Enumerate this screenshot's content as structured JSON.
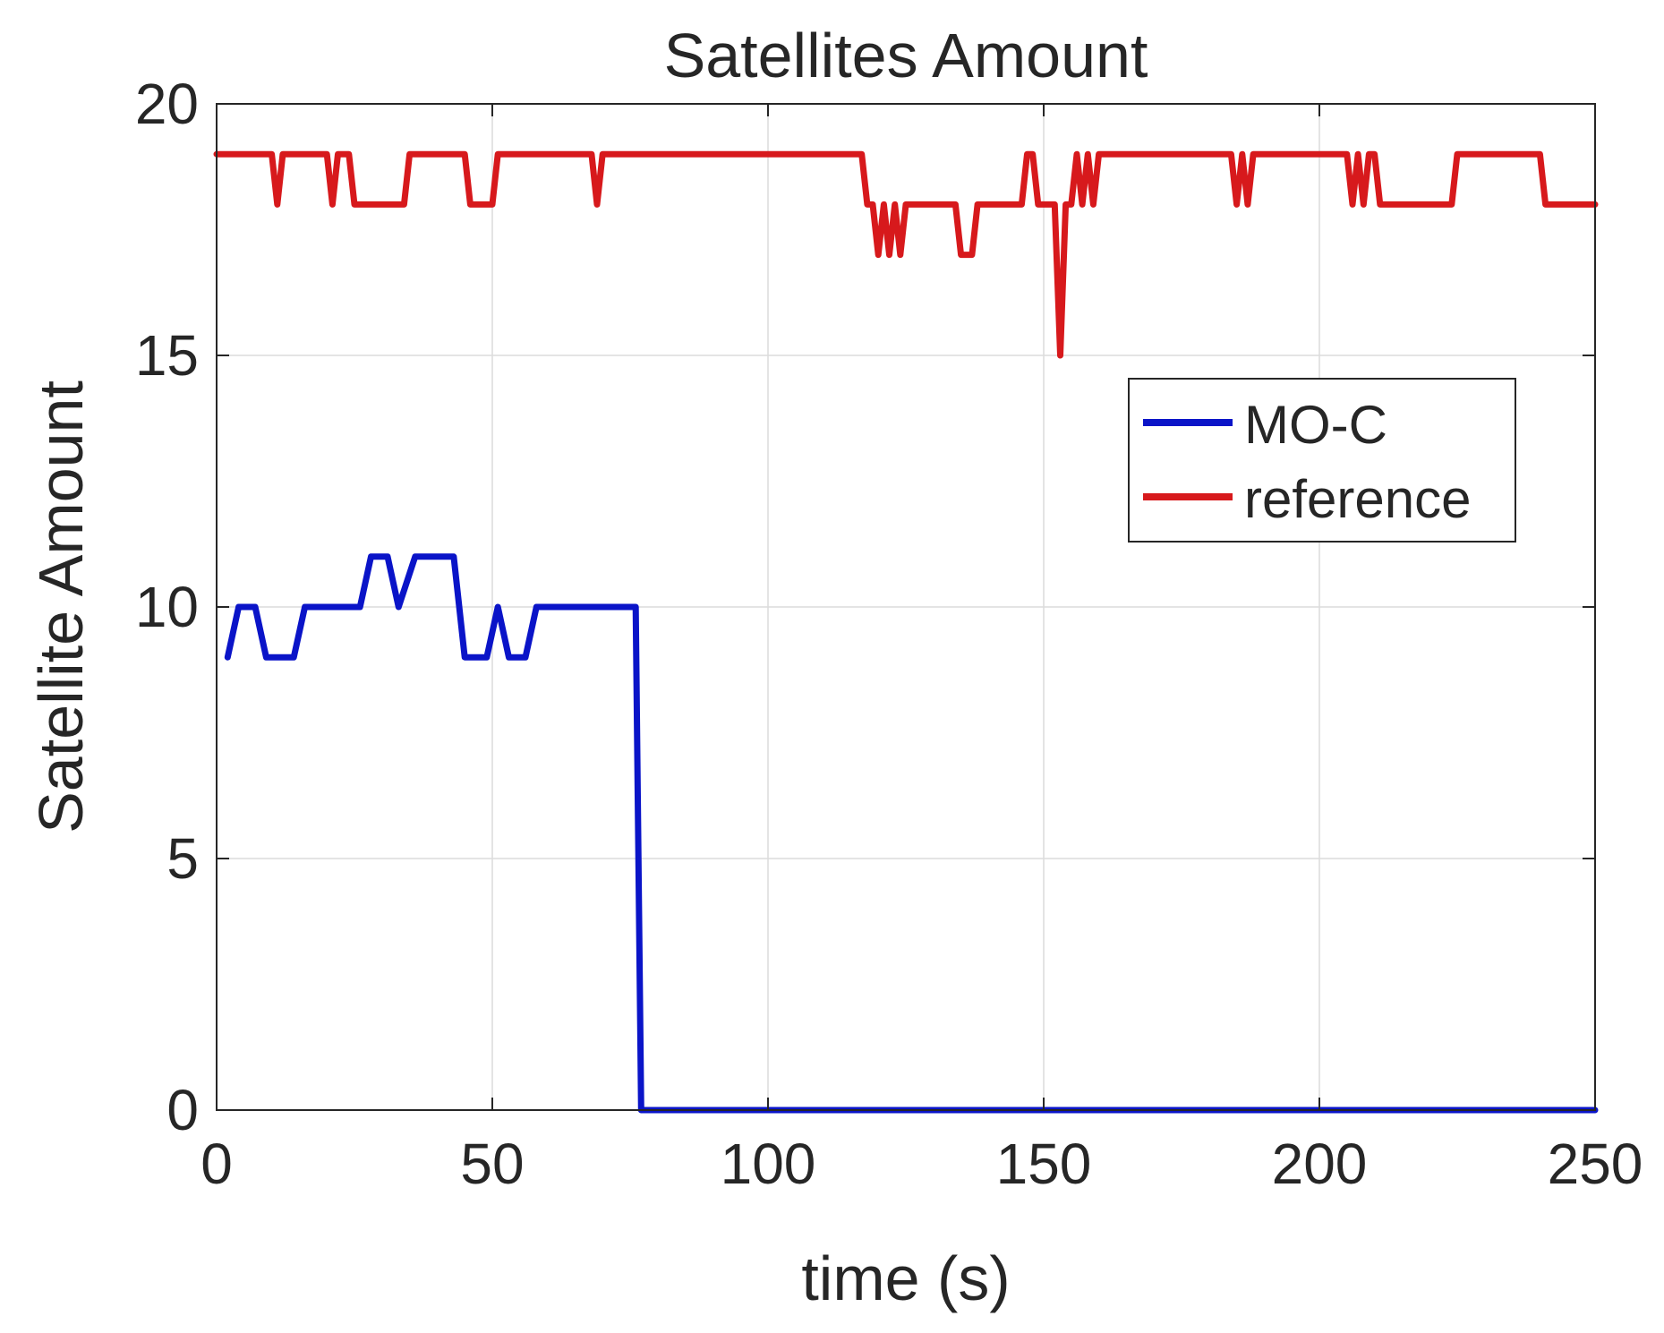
{
  "chart_data": {
    "type": "line",
    "title": "Satellites Amount",
    "xlabel": "time (s)",
    "ylabel": "Satellite Amount",
    "xlim": [
      0,
      250
    ],
    "ylim": [
      0,
      20
    ],
    "xticks": [
      0,
      50,
      100,
      150,
      200,
      250
    ],
    "yticks": [
      0,
      5,
      10,
      15,
      20
    ],
    "grid": true,
    "legend_position": "upper-right",
    "series": [
      {
        "name": "MO-C",
        "color": "#0a14c8",
        "x": [
          2,
          4,
          7,
          9,
          14,
          16,
          26,
          28,
          31,
          33,
          36,
          43,
          45,
          49,
          51,
          53,
          56,
          58,
          76,
          77,
          250
        ],
        "y": [
          9,
          10,
          10,
          9,
          9,
          10,
          10,
          11,
          11,
          10,
          11,
          11,
          9,
          9,
          10,
          9,
          9,
          10,
          10,
          0,
          0
        ]
      },
      {
        "name": "reference",
        "color": "#d7191c",
        "x": [
          0,
          10,
          11,
          12,
          20,
          21,
          22,
          23,
          24,
          25,
          34,
          35,
          45,
          46,
          50,
          51,
          68,
          69,
          70,
          117,
          118,
          119,
          120,
          121,
          122,
          123,
          124,
          125,
          126,
          134,
          135,
          137,
          138,
          146,
          147,
          148,
          149,
          152,
          153,
          154,
          155,
          156,
          157,
          158,
          159,
          160,
          161,
          184,
          185,
          186,
          187,
          188,
          205,
          206,
          207,
          208,
          209,
          210,
          211,
          224,
          225,
          240,
          241,
          250
        ],
        "y": [
          19,
          19,
          18,
          19,
          19,
          18,
          19,
          19,
          19,
          18,
          18,
          19,
          19,
          18,
          18,
          19,
          19,
          18,
          19,
          19,
          18,
          18,
          17,
          18,
          17,
          18,
          17,
          18,
          18,
          18,
          17,
          17,
          18,
          18,
          19,
          19,
          18,
          18,
          15,
          18,
          18,
          19,
          18,
          19,
          18,
          19,
          19,
          19,
          18,
          19,
          18,
          19,
          19,
          18,
          19,
          18,
          19,
          19,
          18,
          18,
          19,
          19,
          18,
          18
        ]
      }
    ]
  }
}
